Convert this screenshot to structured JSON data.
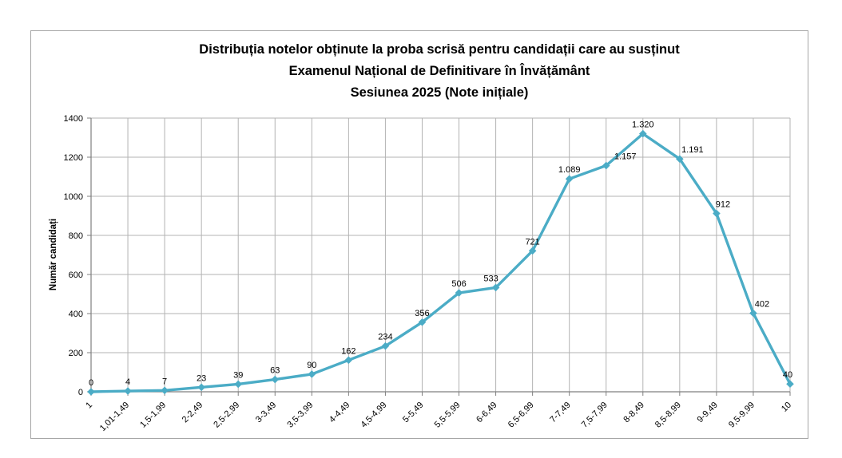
{
  "chart_data": {
    "type": "line",
    "title": "Distribuția notelor obținute la proba scrisă pentru candidații care au susținut Examenul Național de Definitivare în Învățământ Sesiunea 2025 (Note inițiale)",
    "title_lines": [
      "Distribuția notelor obținute la proba scrisă pentru candidații care au susținut",
      "Examenul Național de Definitivare în Învățământ",
      "Sesiunea 2025 (Note inițiale)"
    ],
    "xlabel": "",
    "ylabel": "Număr candidați",
    "categories": [
      "1",
      "1,01-1,49",
      "1,5-1,99",
      "2-2,49",
      "2,5-2,99",
      "3-3,49",
      "3,5-3,99",
      "4-4,49",
      "4,5-4,99",
      "5-5,49",
      "5,5-5,99",
      "6-6,49",
      "6,5-6,99",
      "7-7,49",
      "7,5-7,99",
      "8-8,49",
      "8,5-8,99",
      "9-9,49",
      "9,5-9,99",
      "10"
    ],
    "values": [
      0,
      4,
      7,
      23,
      39,
      63,
      90,
      162,
      234,
      356,
      506,
      533,
      721,
      1089,
      1157,
      1320,
      1191,
      912,
      402,
      40
    ],
    "point_labels": [
      "0",
      "4",
      "7",
      "23",
      "39",
      "63",
      "90",
      "162",
      "234",
      "356",
      "506",
      "533",
      "721",
      "1.089",
      "1.157",
      "1.320",
      "1.191",
      "912",
      "402",
      "40"
    ],
    "label_dx": [
      0,
      0,
      0,
      0,
      0,
      0,
      0,
      0,
      0,
      0,
      0,
      -6,
      0,
      0,
      24,
      0,
      16,
      8,
      11,
      -3
    ],
    "ylim": [
      0,
      1400
    ],
    "ytick_step": 200,
    "ytick_labels": [
      "0",
      "200",
      "400",
      "600",
      "800",
      "1000",
      "1200",
      "1400"
    ],
    "grid": true,
    "legend_position": "none",
    "line_color": "#4BACC6",
    "marker": "diamond",
    "grid_color": "#b3b3b3",
    "axis_color": "#7f7f7f",
    "frame_border_color": "#a6a6a6",
    "text_color": "#000000"
  }
}
